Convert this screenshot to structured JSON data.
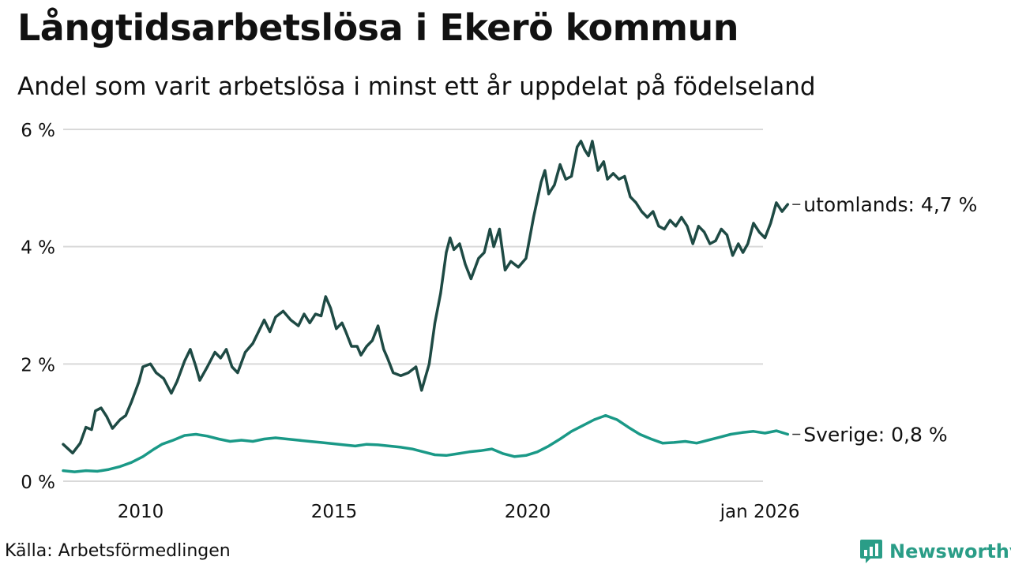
{
  "title": "Långtidsarbetslösa i Ekerö kommun",
  "subtitle": "Andel som varit arbetslösa i minst ett år uppdelat på födelseland",
  "source": "Källa: Arbetsförmedlingen",
  "brand": "Newsworthy",
  "colors": {
    "utomlands": "#1e4a44",
    "sverige": "#1a9987",
    "grid": "#d9d9d9",
    "brand": "#2a9d87"
  },
  "chart_data": {
    "type": "line",
    "title": "Långtidsarbetslösa i Ekerö kommun",
    "subtitle": "Andel som varit arbetslösa i minst ett år uppdelat på födelseland",
    "xlabel": "",
    "ylabel": "",
    "ylim": [
      0,
      6
    ],
    "xlim": [
      2008.0,
      2026.08
    ],
    "yticks": [
      {
        "value": 0,
        "label": "0 %"
      },
      {
        "value": 2,
        "label": "2 %"
      },
      {
        "value": 4,
        "label": "4 %"
      },
      {
        "value": 6,
        "label": "6 %"
      }
    ],
    "xticks": [
      {
        "value": 2010,
        "label": "2010"
      },
      {
        "value": 2015,
        "label": "2015"
      },
      {
        "value": 2020,
        "label": "2020"
      },
      {
        "value": 2026.0,
        "label": "jan 2026"
      }
    ],
    "grid": true,
    "series": [
      {
        "name": "utomlands",
        "end_label": "utomlands: 4,7 %",
        "color": "#1e4a44",
        "points": [
          [
            2008.0,
            0.63
          ],
          [
            2008.25,
            0.48
          ],
          [
            2008.45,
            0.65
          ],
          [
            2008.6,
            0.92
          ],
          [
            2008.75,
            0.88
          ],
          [
            2008.85,
            1.2
          ],
          [
            2009.0,
            1.25
          ],
          [
            2009.15,
            1.1
          ],
          [
            2009.3,
            0.9
          ],
          [
            2009.5,
            1.05
          ],
          [
            2009.65,
            1.12
          ],
          [
            2009.8,
            1.35
          ],
          [
            2010.0,
            1.7
          ],
          [
            2010.1,
            1.95
          ],
          [
            2010.3,
            2.0
          ],
          [
            2010.45,
            1.85
          ],
          [
            2010.65,
            1.75
          ],
          [
            2010.85,
            1.5
          ],
          [
            2011.0,
            1.7
          ],
          [
            2011.2,
            2.05
          ],
          [
            2011.35,
            2.25
          ],
          [
            2011.5,
            1.95
          ],
          [
            2011.6,
            1.72
          ],
          [
            2011.8,
            1.95
          ],
          [
            2012.0,
            2.2
          ],
          [
            2012.15,
            2.1
          ],
          [
            2012.3,
            2.25
          ],
          [
            2012.45,
            1.95
          ],
          [
            2012.6,
            1.85
          ],
          [
            2012.8,
            2.2
          ],
          [
            2013.0,
            2.35
          ],
          [
            2013.15,
            2.55
          ],
          [
            2013.3,
            2.75
          ],
          [
            2013.45,
            2.55
          ],
          [
            2013.6,
            2.8
          ],
          [
            2013.8,
            2.9
          ],
          [
            2014.0,
            2.75
          ],
          [
            2014.2,
            2.65
          ],
          [
            2014.35,
            2.85
          ],
          [
            2014.5,
            2.7
          ],
          [
            2014.65,
            2.85
          ],
          [
            2014.8,
            2.82
          ],
          [
            2014.92,
            3.15
          ],
          [
            2015.05,
            2.95
          ],
          [
            2015.2,
            2.6
          ],
          [
            2015.35,
            2.7
          ],
          [
            2015.45,
            2.55
          ],
          [
            2015.6,
            2.3
          ],
          [
            2015.75,
            2.3
          ],
          [
            2015.85,
            2.15
          ],
          [
            2016.0,
            2.3
          ],
          [
            2016.15,
            2.4
          ],
          [
            2016.3,
            2.65
          ],
          [
            2016.45,
            2.25
          ],
          [
            2016.55,
            2.1
          ],
          [
            2016.7,
            1.85
          ],
          [
            2016.9,
            1.8
          ],
          [
            2017.1,
            1.85
          ],
          [
            2017.3,
            1.95
          ],
          [
            2017.45,
            1.55
          ],
          [
            2017.65,
            2.0
          ],
          [
            2017.8,
            2.7
          ],
          [
            2017.95,
            3.2
          ],
          [
            2018.1,
            3.9
          ],
          [
            2018.2,
            4.15
          ],
          [
            2018.3,
            3.95
          ],
          [
            2018.45,
            4.05
          ],
          [
            2018.6,
            3.7
          ],
          [
            2018.75,
            3.45
          ],
          [
            2018.95,
            3.8
          ],
          [
            2019.1,
            3.9
          ],
          [
            2019.25,
            4.3
          ],
          [
            2019.35,
            4.0
          ],
          [
            2019.5,
            4.3
          ],
          [
            2019.65,
            3.6
          ],
          [
            2019.8,
            3.75
          ],
          [
            2020.0,
            3.65
          ],
          [
            2020.2,
            3.8
          ],
          [
            2020.4,
            4.5
          ],
          [
            2020.6,
            5.1
          ],
          [
            2020.7,
            5.3
          ],
          [
            2020.8,
            4.9
          ],
          [
            2020.95,
            5.05
          ],
          [
            2021.1,
            5.4
          ],
          [
            2021.25,
            5.15
          ],
          [
            2021.4,
            5.2
          ],
          [
            2021.55,
            5.7
          ],
          [
            2021.65,
            5.8
          ],
          [
            2021.75,
            5.65
          ],
          [
            2021.85,
            5.55
          ],
          [
            2021.95,
            5.8
          ],
          [
            2022.1,
            5.3
          ],
          [
            2022.25,
            5.45
          ],
          [
            2022.35,
            5.15
          ],
          [
            2022.5,
            5.25
          ],
          [
            2022.65,
            5.15
          ],
          [
            2022.8,
            5.2
          ],
          [
            2022.95,
            4.85
          ],
          [
            2023.1,
            4.75
          ],
          [
            2023.25,
            4.6
          ],
          [
            2023.4,
            4.5
          ],
          [
            2023.55,
            4.6
          ],
          [
            2023.7,
            4.35
          ],
          [
            2023.85,
            4.3
          ],
          [
            2024.0,
            4.45
          ],
          [
            2024.15,
            4.35
          ],
          [
            2024.3,
            4.5
          ],
          [
            2024.45,
            4.35
          ],
          [
            2024.6,
            4.05
          ],
          [
            2024.75,
            4.35
          ],
          [
            2024.9,
            4.25
          ],
          [
            2025.05,
            4.05
          ],
          [
            2025.2,
            4.1
          ],
          [
            2025.35,
            4.3
          ],
          [
            2025.5,
            4.2
          ],
          [
            2025.65,
            3.85
          ],
          [
            2025.8,
            4.05
          ],
          [
            2025.92,
            3.9
          ],
          [
            2026.05,
            4.05
          ],
          [
            2026.2,
            4.4
          ],
          [
            2026.35,
            4.25
          ],
          [
            2026.5,
            4.15
          ],
          [
            2026.65,
            4.4
          ],
          [
            2026.8,
            4.75
          ],
          [
            2026.95,
            4.6
          ],
          [
            2027.1,
            4.72
          ]
        ]
      },
      {
        "name": "Sverige",
        "end_label": "Sverige: 0,8 %",
        "color": "#1a9987",
        "points": [
          [
            2008.0,
            0.18
          ],
          [
            2008.3,
            0.16
          ],
          [
            2008.6,
            0.18
          ],
          [
            2008.9,
            0.17
          ],
          [
            2009.2,
            0.2
          ],
          [
            2009.5,
            0.25
          ],
          [
            2009.8,
            0.32
          ],
          [
            2010.1,
            0.42
          ],
          [
            2010.4,
            0.55
          ],
          [
            2010.6,
            0.63
          ],
          [
            2010.9,
            0.7
          ],
          [
            2011.2,
            0.78
          ],
          [
            2011.5,
            0.8
          ],
          [
            2011.8,
            0.77
          ],
          [
            2012.1,
            0.72
          ],
          [
            2012.4,
            0.68
          ],
          [
            2012.7,
            0.7
          ],
          [
            2013.0,
            0.68
          ],
          [
            2013.3,
            0.72
          ],
          [
            2013.6,
            0.74
          ],
          [
            2013.9,
            0.72
          ],
          [
            2014.2,
            0.7
          ],
          [
            2014.5,
            0.68
          ],
          [
            2014.8,
            0.66
          ],
          [
            2015.1,
            0.64
          ],
          [
            2015.4,
            0.62
          ],
          [
            2015.7,
            0.6
          ],
          [
            2016.0,
            0.63
          ],
          [
            2016.3,
            0.62
          ],
          [
            2016.6,
            0.6
          ],
          [
            2016.9,
            0.58
          ],
          [
            2017.2,
            0.55
          ],
          [
            2017.5,
            0.5
          ],
          [
            2017.8,
            0.45
          ],
          [
            2018.1,
            0.44
          ],
          [
            2018.4,
            0.47
          ],
          [
            2018.7,
            0.5
          ],
          [
            2019.0,
            0.52
          ],
          [
            2019.3,
            0.55
          ],
          [
            2019.6,
            0.47
          ],
          [
            2019.9,
            0.42
          ],
          [
            2020.2,
            0.44
          ],
          [
            2020.5,
            0.5
          ],
          [
            2020.8,
            0.6
          ],
          [
            2021.1,
            0.72
          ],
          [
            2021.4,
            0.85
          ],
          [
            2021.7,
            0.95
          ],
          [
            2022.0,
            1.05
          ],
          [
            2022.3,
            1.12
          ],
          [
            2022.6,
            1.05
          ],
          [
            2022.9,
            0.92
          ],
          [
            2023.2,
            0.8
          ],
          [
            2023.5,
            0.72
          ],
          [
            2023.8,
            0.65
          ],
          [
            2024.1,
            0.66
          ],
          [
            2024.4,
            0.68
          ],
          [
            2024.7,
            0.65
          ],
          [
            2025.0,
            0.7
          ],
          [
            2025.3,
            0.75
          ],
          [
            2025.6,
            0.8
          ],
          [
            2025.9,
            0.83
          ],
          [
            2026.2,
            0.85
          ],
          [
            2026.5,
            0.82
          ],
          [
            2026.8,
            0.86
          ],
          [
            2027.1,
            0.8
          ]
        ]
      }
    ]
  }
}
